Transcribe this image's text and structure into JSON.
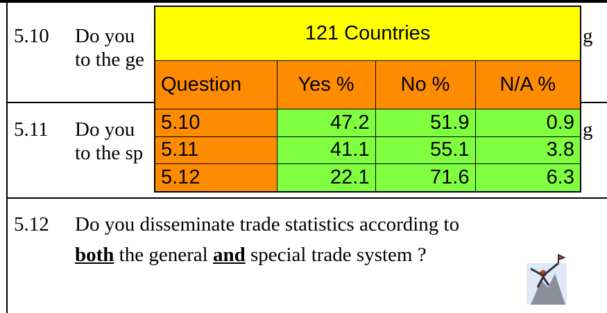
{
  "rows": [
    {
      "number": "5.10",
      "line1": "Do you",
      "line2": "to the ge",
      "tail": "g"
    },
    {
      "number": "5.11",
      "line1": "Do you",
      "line2": "to the sp",
      "tail": "g"
    }
  ],
  "question": {
    "number": "5.12",
    "line1": "Do you disseminate trade statistics according to",
    "line2": [
      {
        "text": "both",
        "bold": true
      },
      {
        "text": " the general ",
        "bold": false
      },
      {
        "text": "and",
        "bold": true
      },
      {
        "text": " special trade system ?",
        "bold": false
      }
    ]
  },
  "table": {
    "title": "121 Countries",
    "header": [
      "Question",
      "Yes %",
      "No %",
      "N/A %"
    ],
    "rows": [
      [
        "5.10",
        47.2,
        51.9,
        0.9
      ],
      [
        "5.11",
        41.1,
        55.1,
        3.8
      ],
      [
        "5.12",
        22.1,
        71.6,
        6.3
      ]
    ]
  }
}
